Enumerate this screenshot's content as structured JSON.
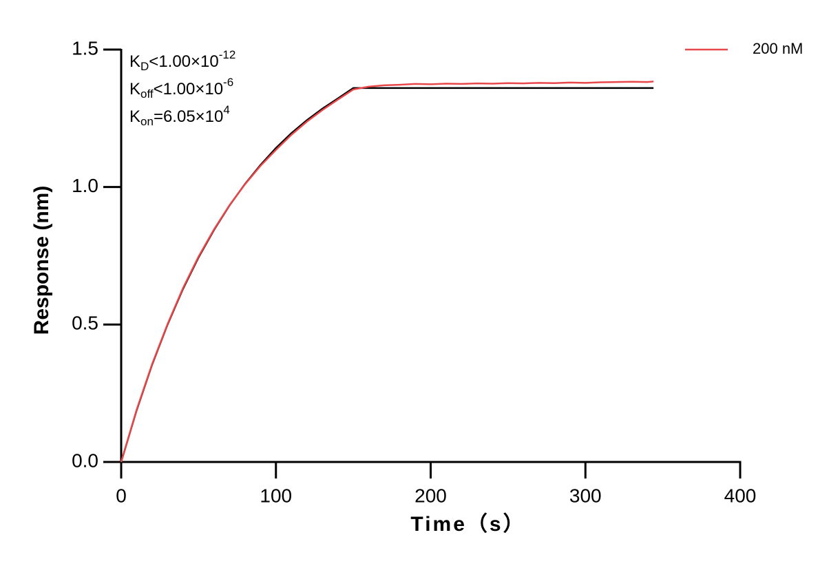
{
  "chart_data": {
    "type": "line",
    "xlabel": "Time（s）",
    "ylabel": "Response (nm)",
    "xlim": [
      0,
      400
    ],
    "ylim": [
      0,
      1.5
    ],
    "xticks": [
      0,
      100,
      200,
      300,
      400
    ],
    "yticks": [
      {
        "value": 0,
        "label": "0.0"
      },
      {
        "value": 0.5,
        "label": "0.5"
      },
      {
        "value": 1,
        "label": "1.0"
      },
      {
        "value": 1.5,
        "label": "1.5"
      }
    ],
    "legend": "top-right",
    "annotations": [
      {
        "k": "K",
        "sub": "D",
        "rel": "<",
        "mant": "1.00×10",
        "exp": "-12"
      },
      {
        "k": "K",
        "sub": "off",
        "rel": "<",
        "mant": "1.00×10",
        "exp": "-6"
      },
      {
        "k": "K",
        "sub": "on",
        "rel": "=",
        "mant": "6.05×10",
        "exp": "4"
      }
    ],
    "fit": {
      "color": "#000000",
      "x": [
        0,
        10,
        20,
        30,
        40,
        50,
        60,
        70,
        80,
        90,
        100,
        110,
        120,
        130,
        140,
        150,
        344
      ],
      "values": [
        0,
        0.188,
        0.354,
        0.5,
        0.63,
        0.744,
        0.844,
        0.933,
        1.011,
        1.08,
        1.142,
        1.196,
        1.243,
        1.285,
        1.322,
        1.36,
        1.36
      ]
    },
    "series": [
      {
        "name": "200 nM",
        "color": "#e8474a",
        "x": [
          0,
          10,
          20,
          30,
          40,
          50,
          60,
          70,
          80,
          90,
          100,
          110,
          120,
          130,
          140,
          150,
          160,
          170,
          180,
          190,
          200,
          210,
          220,
          230,
          240,
          250,
          260,
          270,
          280,
          290,
          300,
          310,
          320,
          330,
          340,
          344
        ],
        "values": [
          0,
          0.19,
          0.356,
          0.502,
          0.633,
          0.747,
          0.846,
          0.934,
          1.01,
          1.077,
          1.135,
          1.19,
          1.238,
          1.28,
          1.318,
          1.355,
          1.365,
          1.37,
          1.372,
          1.375,
          1.374,
          1.376,
          1.375,
          1.377,
          1.376,
          1.378,
          1.377,
          1.379,
          1.378,
          1.38,
          1.379,
          1.381,
          1.382,
          1.383,
          1.382,
          1.384
        ]
      }
    ]
  }
}
